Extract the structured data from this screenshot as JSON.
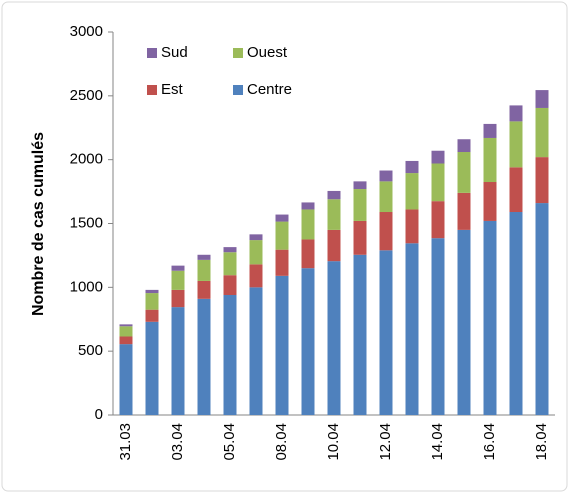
{
  "chart_data": {
    "type": "stacked_bar",
    "ylabel": "Nombre de cas cumulés",
    "categories": [
      "31.03",
      null,
      "03.04",
      null,
      "05.04",
      null,
      "08.04",
      null,
      "10.04",
      null,
      "12.04",
      null,
      "14.04",
      null,
      "16.04",
      null,
      "18.04"
    ],
    "series": [
      {
        "name": "Centre",
        "color": "#4f81bd",
        "values": [
          555,
          730,
          845,
          910,
          940,
          1000,
          1090,
          1150,
          1205,
          1255,
          1290,
          1345,
          1385,
          1450,
          1520,
          1590,
          1660
        ]
      },
      {
        "name": "Est",
        "color": "#c0504d",
        "values": [
          60,
          95,
          135,
          140,
          155,
          180,
          205,
          225,
          245,
          265,
          300,
          265,
          290,
          290,
          305,
          350,
          360
        ]
      },
      {
        "name": "Ouest",
        "color": "#9bbb59",
        "values": [
          80,
          130,
          150,
          165,
          180,
          190,
          220,
          235,
          240,
          250,
          240,
          285,
          295,
          320,
          345,
          360,
          385
        ]
      },
      {
        "name": "Sud",
        "color": "#8064a2",
        "values": [
          15,
          25,
          40,
          40,
          40,
          45,
          55,
          55,
          65,
          60,
          85,
          95,
          100,
          100,
          110,
          125,
          140
        ]
      }
    ],
    "ylim": [
      0,
      3000
    ],
    "yticks": [
      0,
      500,
      1000,
      1500,
      2000,
      2500,
      3000
    ]
  }
}
